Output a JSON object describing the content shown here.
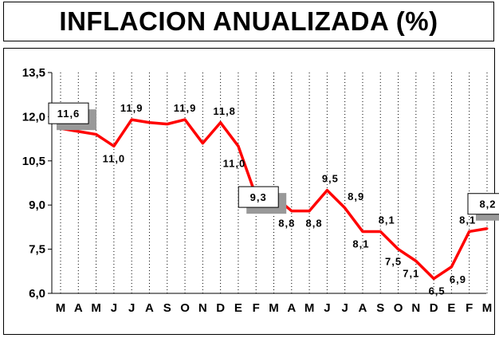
{
  "title": "INFLACION ANUALIZADA (%)",
  "chart_data": {
    "type": "line",
    "title": "INFLACION ANUALIZADA (%)",
    "xlabel": "",
    "ylabel": "",
    "ylim": [
      6.0,
      13.5
    ],
    "yticks": [
      "13,5",
      "12,0",
      "10,5",
      "9,0",
      "7,5",
      "6,0"
    ],
    "ytick_values": [
      13.5,
      12.0,
      10.5,
      9.0,
      7.5,
      6.0
    ],
    "categories": [
      "M",
      "A",
      "M",
      "J",
      "J",
      "A",
      "S",
      "O",
      "N",
      "D",
      "E",
      "F",
      "M",
      "A",
      "M",
      "J",
      "J",
      "A",
      "S",
      "O",
      "N",
      "D",
      "E",
      "F",
      "M"
    ],
    "values": [
      11.6,
      11.5,
      11.4,
      11.0,
      11.9,
      11.8,
      11.75,
      11.9,
      11.1,
      11.8,
      11.0,
      9.3,
      9.3,
      8.8,
      8.8,
      9.5,
      8.9,
      8.1,
      8.1,
      7.5,
      7.1,
      6.5,
      6.9,
      8.1,
      8.2
    ],
    "grid": "vertical dotted",
    "line_color": "#ff0000",
    "data_labels": [
      {
        "index": 3,
        "text": "11,0"
      },
      {
        "index": 4,
        "text": "11,9"
      },
      {
        "index": 7,
        "text": "11,9"
      },
      {
        "index": 9,
        "text": "11,8"
      },
      {
        "index": 10,
        "text": "11,0"
      },
      {
        "index": 13,
        "text": "8,8"
      },
      {
        "index": 14,
        "text": "8,8"
      },
      {
        "index": 15,
        "text": "9,5"
      },
      {
        "index": 16,
        "text": "8,9"
      },
      {
        "index": 17,
        "text": "8,1"
      },
      {
        "index": 18,
        "text": "8,1"
      },
      {
        "index": 19,
        "text": "7,5"
      },
      {
        "index": 20,
        "text": "7,1"
      },
      {
        "index": 21,
        "text": "6,5"
      },
      {
        "index": 22,
        "text": "6,9"
      },
      {
        "index": 23,
        "text": "8,1"
      }
    ],
    "callouts": [
      {
        "index": 0,
        "text": "11,6"
      },
      {
        "index": 11,
        "text": "9,3"
      },
      {
        "index": 24,
        "text": "8,2"
      }
    ]
  }
}
